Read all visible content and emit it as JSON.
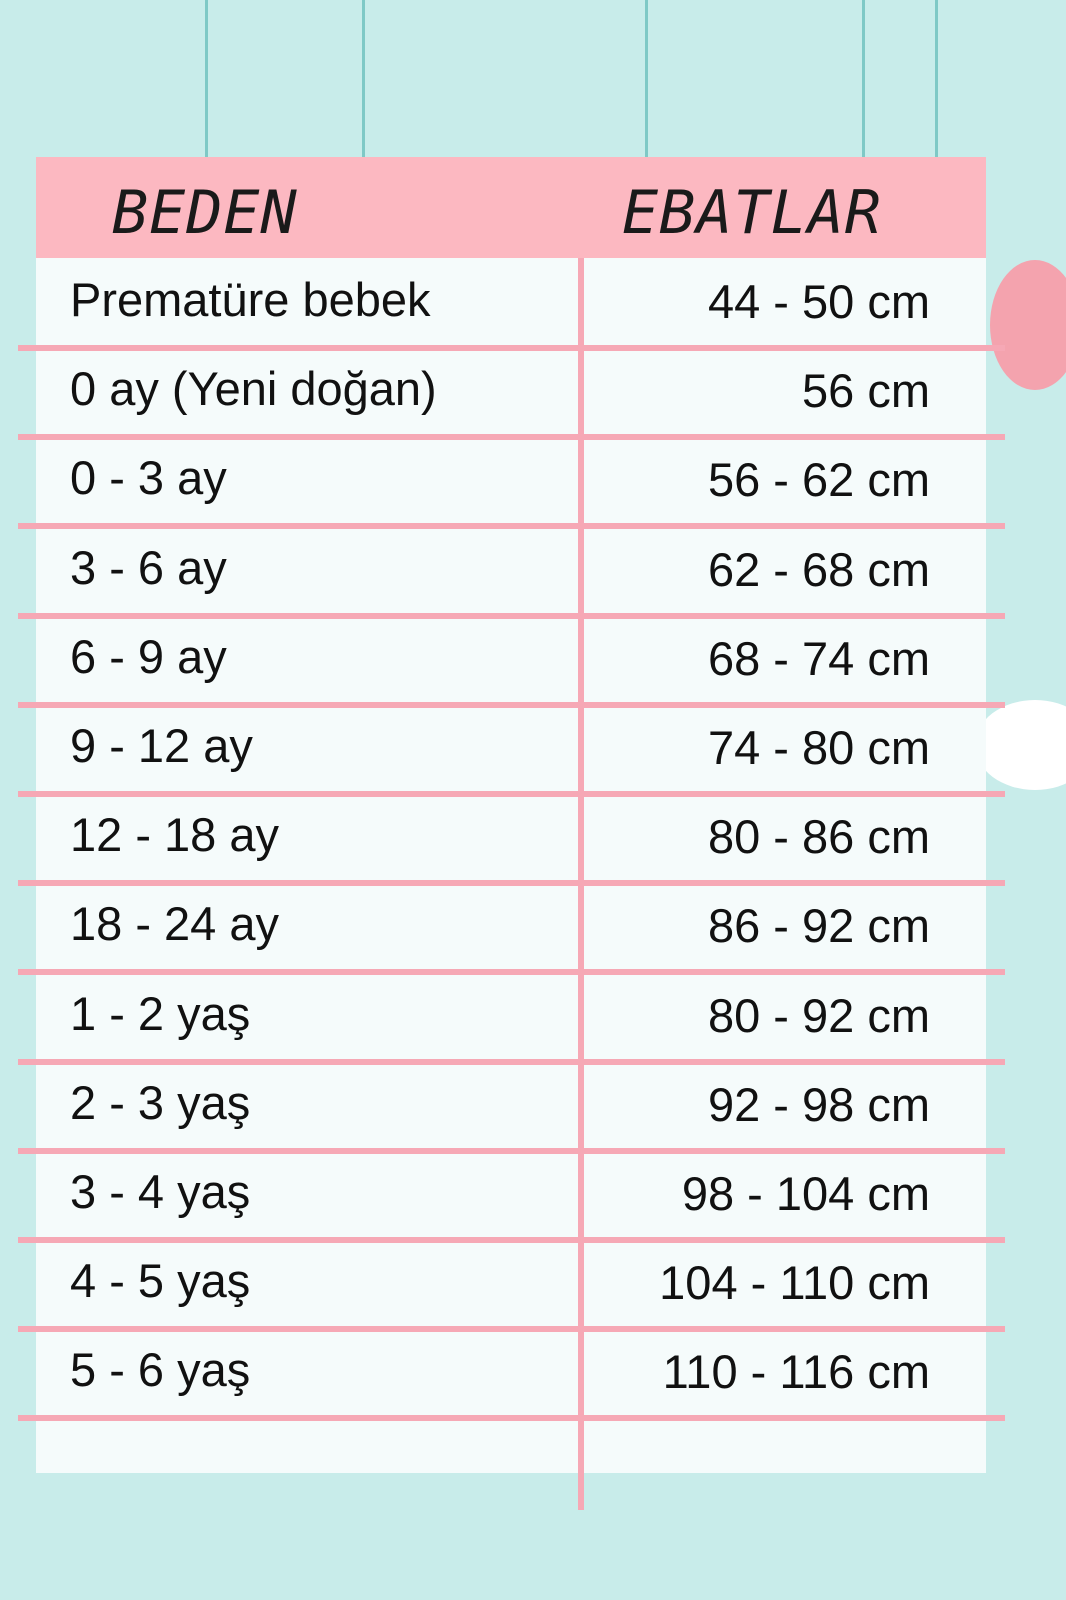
{
  "header": {
    "size_label": "BEDEN",
    "dimension_label": "EBATLAR"
  },
  "rows": [
    {
      "size": "Prematüre bebek",
      "dimension": "44 - 50 cm"
    },
    {
      "size": "0 ay (Yeni doğan)",
      "dimension": "56 cm"
    },
    {
      "size": "0 - 3 ay",
      "dimension": "56 - 62 cm"
    },
    {
      "size": "3 - 6 ay",
      "dimension": "62 - 68 cm"
    },
    {
      "size": "6 - 9 ay",
      "dimension": "68 - 74 cm"
    },
    {
      "size": "9 - 12 ay",
      "dimension": "74 - 80 cm"
    },
    {
      "size": "12 - 18 ay",
      "dimension": "80 - 86 cm"
    },
    {
      "size": "18 - 24 ay",
      "dimension": "86 - 92 cm"
    },
    {
      "size": "1 - 2 yaş",
      "dimension": "80 - 92 cm"
    },
    {
      "size": "2 - 3 yaş",
      "dimension": "92 - 98 cm"
    },
    {
      "size": "3 - 4 yaş",
      "dimension": "98 - 104 cm"
    },
    {
      "size": "4 - 5 yaş",
      "dimension": "104 - 110 cm"
    },
    {
      "size": "5 - 6 yaş",
      "dimension": "110 - 116 cm"
    }
  ],
  "colors": {
    "background": "#c8ecea",
    "header": "#fcb8c1",
    "lines": "#f6a8b5",
    "card": "#f5fbfb"
  }
}
